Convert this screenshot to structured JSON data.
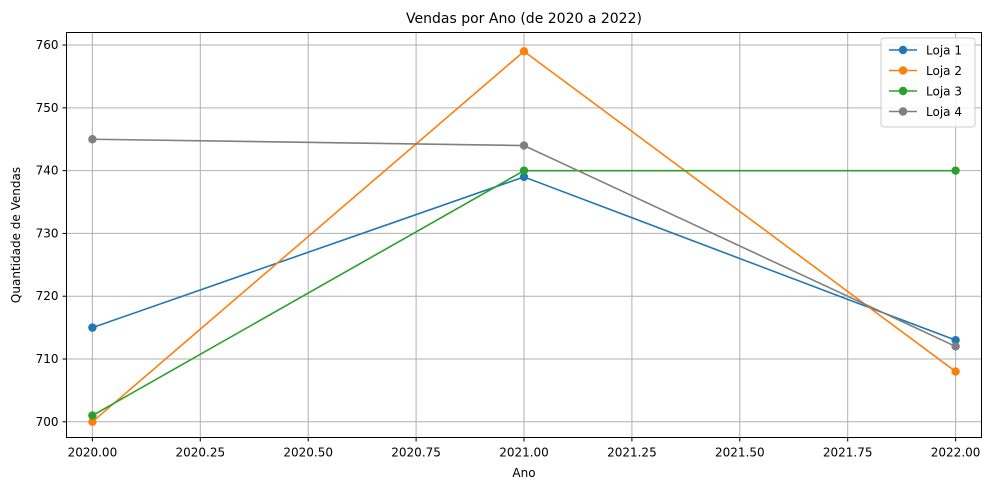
{
  "chart_data": {
    "type": "line",
    "title": "Vendas por Ano (de 2020 a 2022)",
    "xlabel": "Ano",
    "ylabel": "Quantidade de Vendas",
    "x": [
      2020,
      2021,
      2022
    ],
    "xlim": [
      2019.94,
      2022.06
    ],
    "ylim": [
      697.5,
      762
    ],
    "xticks": [
      2020.0,
      2020.25,
      2020.5,
      2020.75,
      2021.0,
      2021.25,
      2021.5,
      2021.75,
      2022.0
    ],
    "xtick_labels": [
      "2020.00",
      "2020.25",
      "2020.50",
      "2020.75",
      "2021.00",
      "2021.25",
      "2021.50",
      "2021.75",
      "2022.00"
    ],
    "yticks": [
      700,
      710,
      720,
      730,
      740,
      750,
      760
    ],
    "ytick_labels": [
      "700",
      "710",
      "720",
      "730",
      "740",
      "750",
      "760"
    ],
    "grid": true,
    "legend_position": "top-right",
    "series": [
      {
        "name": "Loja 1",
        "color": "#1f77b4",
        "values": [
          715,
          739,
          713
        ]
      },
      {
        "name": "Loja 2",
        "color": "#ff7f0e",
        "values": [
          700,
          759,
          708
        ]
      },
      {
        "name": "Loja 3",
        "color": "#2ca02c",
        "values": [
          701,
          740,
          740
        ]
      },
      {
        "name": "Loja 4",
        "color": "#7f7f7f",
        "values": [
          745,
          744,
          712
        ]
      }
    ]
  }
}
